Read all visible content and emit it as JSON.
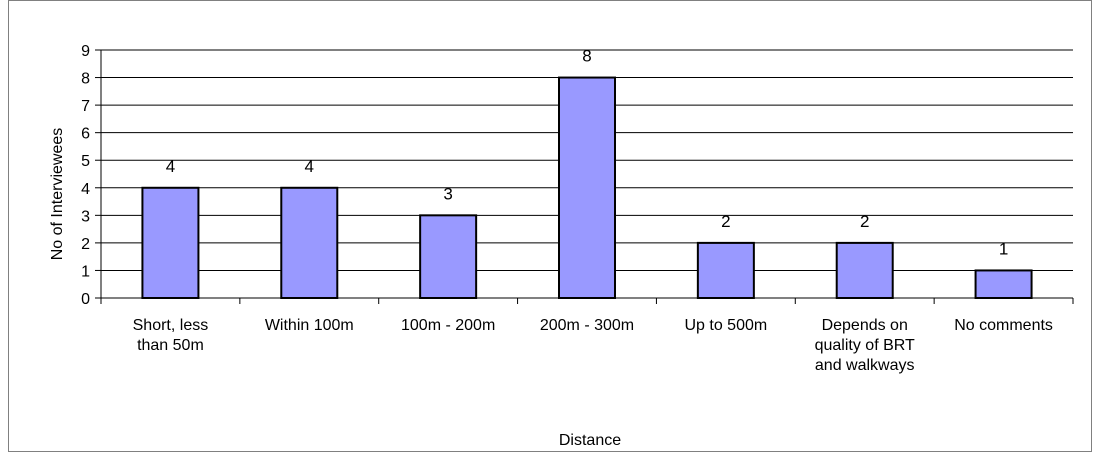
{
  "chart_data": {
    "type": "bar",
    "categories": [
      [
        "Short, less",
        "than 50m"
      ],
      [
        "Within 100m"
      ],
      [
        "100m - 200m"
      ],
      [
        "200m - 300m"
      ],
      [
        "Up to 500m"
      ],
      [
        "Depends on",
        "quality of BRT",
        "and walkways"
      ],
      [
        "No comments"
      ]
    ],
    "values": [
      4,
      4,
      3,
      8,
      2,
      2,
      1
    ],
    "xlabel": "Distance",
    "ylabel": "No of Interviewees",
    "ylim": [
      0,
      9
    ],
    "yticks": [
      "0",
      "1",
      "2",
      "3",
      "4",
      "5",
      "6",
      "7",
      "8",
      "9"
    ],
    "grid": true,
    "bar_color": "#9999ff",
    "bar_edge_color": "#000000",
    "legend": "none"
  }
}
